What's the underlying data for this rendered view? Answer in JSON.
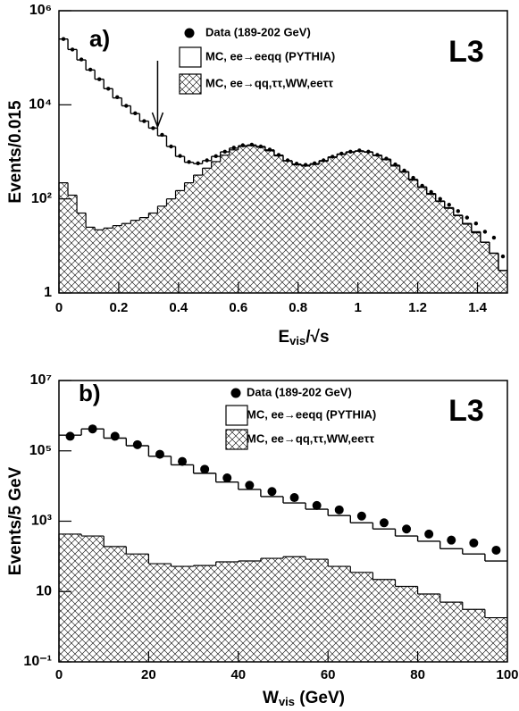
{
  "chart_data": [
    {
      "type": "histogram",
      "panel_label": "a)",
      "experiment": "L3",
      "ylabel": "Events/0.015",
      "xlabel": {
        "main": "E",
        "sub": "vis",
        "tail": "/√s"
      },
      "xlim": [
        0,
        1.5
      ],
      "ylim": [
        1,
        1000000
      ],
      "log_y": true,
      "grid": false,
      "xticks": [
        0,
        0.2,
        0.4,
        0.6,
        0.8,
        1,
        1.2,
        1.4
      ],
      "yticks": [
        1,
        {
          "value": 100,
          "label": "10²"
        },
        {
          "value": 10000,
          "label": "10⁴"
        },
        {
          "value": 1000000,
          "label": "10⁶"
        }
      ],
      "cut_x": 0.33,
      "bins": [
        0,
        0.03,
        0.06,
        0.09,
        0.12,
        0.15,
        0.18,
        0.21,
        0.24,
        0.27,
        0.3,
        0.33,
        0.36,
        0.39,
        0.42,
        0.45,
        0.48,
        0.51,
        0.54,
        0.57,
        0.6,
        0.63,
        0.66,
        0.69,
        0.72,
        0.75,
        0.78,
        0.81,
        0.84,
        0.87,
        0.9,
        0.93,
        0.96,
        0.99,
        1.02,
        1.05,
        1.08,
        1.11,
        1.14,
        1.17,
        1.2,
        1.23,
        1.26,
        1.29,
        1.32,
        1.35,
        1.38,
        1.41,
        1.44,
        1.47,
        1.5
      ],
      "series": [
        {
          "name": "Data (189-202 GeV)",
          "style": "points",
          "color": "#000000",
          "values": [
            250000,
            150000,
            92000,
            56000,
            35000,
            22000,
            14500,
            9500,
            6600,
            4500,
            3200,
            2300,
            1300,
            820,
            610,
            570,
            660,
            810,
            1010,
            1230,
            1380,
            1420,
            1300,
            1120,
            860,
            660,
            560,
            530,
            570,
            660,
            790,
            920,
            1010,
            1070,
            1010,
            860,
            720,
            540,
            400,
            280,
            190,
            140,
            100,
            75,
            55,
            40,
            30,
            20,
            15,
            6
          ]
        },
        {
          "name": "MC, ee→eeqq (PYTHIA)",
          "style": "step",
          "color": "#000000",
          "values": [
            250000,
            150000,
            90000,
            55000,
            35000,
            22000,
            14000,
            9500,
            6500,
            4500,
            3200,
            2200,
            1300,
            800,
            600,
            560,
            650,
            800,
            1000,
            1200,
            1350,
            1400,
            1300,
            1100,
            850,
            650,
            550,
            520,
            560,
            650,
            780,
            900,
            1000,
            1050,
            1000,
            850,
            700,
            520,
            380,
            260,
            180,
            130,
            90,
            65,
            45,
            30,
            20,
            12,
            7,
            3
          ]
        },
        {
          "name": "MC, ee→qq,ττ,WW,eeττ",
          "style": "hatched",
          "color": "#000000",
          "values": [
            220,
            120,
            50,
            25,
            22,
            24,
            27,
            30,
            35,
            40,
            50,
            70,
            100,
            150,
            220,
            320,
            450,
            620,
            850,
            1100,
            1300,
            1350,
            1250,
            1050,
            820,
            640,
            530,
            500,
            540,
            630,
            760,
            880,
            980,
            1030,
            980,
            830,
            680,
            500,
            370,
            250,
            175,
            125,
            88,
            63,
            44,
            29,
            19,
            12,
            7,
            3
          ]
        }
      ]
    },
    {
      "type": "histogram",
      "panel_label": "b)",
      "experiment": "L3",
      "ylabel": "Events/5 GeV",
      "xlabel": {
        "main": "W",
        "sub": "vis",
        "tail": " (GeV)"
      },
      "xlim": [
        0,
        100
      ],
      "ylim": [
        0.1,
        10000000
      ],
      "log_y": true,
      "grid": false,
      "xticks": [
        0,
        20,
        40,
        60,
        80,
        100
      ],
      "yticks": [
        {
          "value": 0.1,
          "label": "10⁻¹"
        },
        10,
        {
          "value": 1000,
          "label": "10³"
        },
        {
          "value": 100000,
          "label": "10⁵"
        },
        {
          "value": 10000000,
          "label": "10⁷"
        }
      ],
      "bins": [
        0,
        5,
        10,
        15,
        20,
        25,
        30,
        35,
        40,
        45,
        50,
        55,
        60,
        65,
        70,
        75,
        80,
        85,
        90,
        95,
        100
      ],
      "series": [
        {
          "name": "Data (189-202 GeV)",
          "style": "points",
          "color": "#000000",
          "values": [
            260000,
            420000,
            260000,
            150000,
            80000,
            50000,
            30000,
            17000,
            10500,
            7000,
            4700,
            2800,
            2100,
            1400,
            900,
            600,
            430,
            290,
            240,
            150
          ]
        },
        {
          "name": "MC, ee→eeqq (PYTHIA)",
          "style": "step",
          "color": "#000000",
          "values": [
            280000,
            420000,
            230000,
            140000,
            70000,
            40000,
            23000,
            13000,
            8000,
            5000,
            3300,
            2200,
            1450,
            900,
            600,
            380,
            270,
            165,
            117,
            74
          ]
        },
        {
          "name": "MC, ee→qq,ττ,WW,eeττ",
          "style": "hatched",
          "color": "#000000",
          "values": [
            430,
            380,
            190,
            117,
            62,
            52,
            55,
            70,
            74,
            88,
            98,
            83,
            52,
            35,
            22,
            14,
            8.5,
            5,
            3.1,
            1.8
          ]
        }
      ]
    }
  ]
}
